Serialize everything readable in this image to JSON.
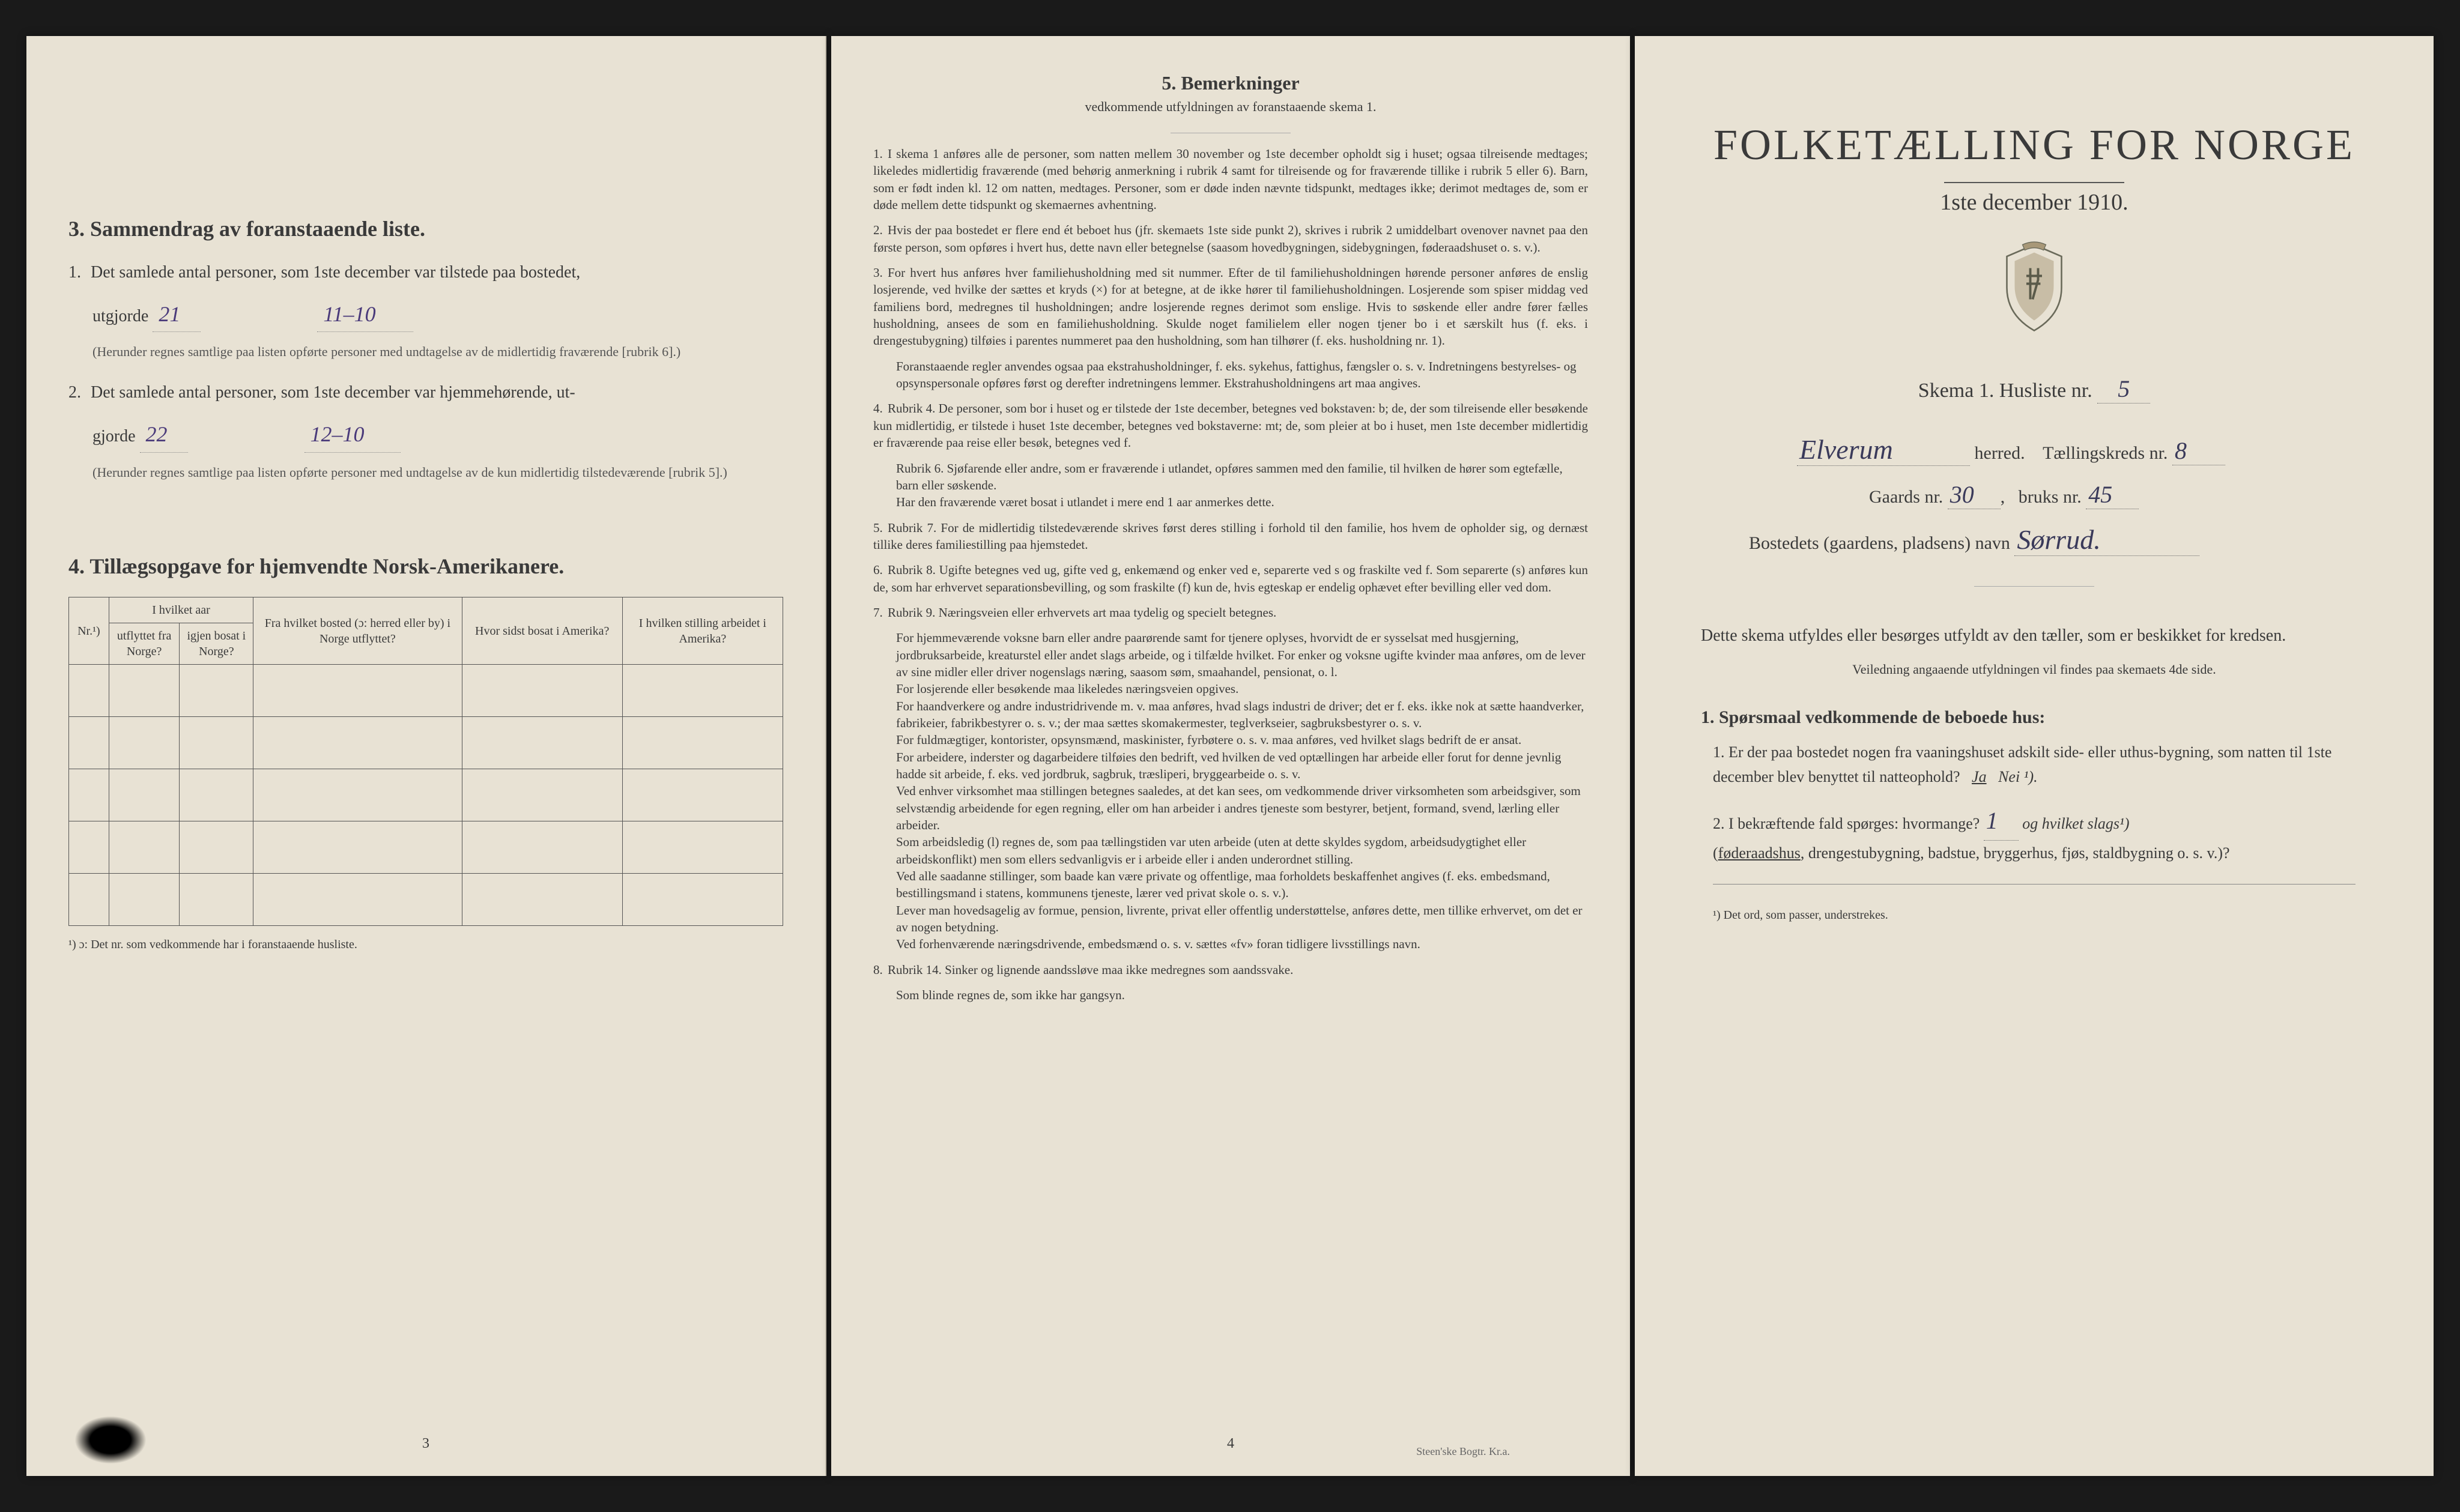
{
  "document": {
    "background_color": "#e8e2d4",
    "text_color": "#3a3a3a",
    "handwriting_color": "#4a3a7a"
  },
  "left_page": {
    "section3": {
      "heading": "3.  Sammendrag av foranstaaende liste.",
      "item1_prefix": "1.",
      "item1_text_a": "Det samlede antal personer, som 1ste december var tilstede paa bostedet,",
      "item1_text_b": "utgjorde",
      "item1_value1": "21",
      "item1_value2": "11–10",
      "item1_note": "(Herunder regnes samtlige paa listen opførte personer med undtagelse av de midlertidig fraværende [rubrik 6].)",
      "item2_prefix": "2.",
      "item2_text_a": "Det samlede antal personer, som 1ste december var hjemmehørende, ut-",
      "item2_text_b": "gjorde",
      "item2_value1": "22",
      "item2_value2": "12–10",
      "item2_note": "(Herunder regnes samtlige paa listen opførte personer med undtagelse av de kun midlertidig tilstedeværende [rubrik 5].)"
    },
    "section4": {
      "heading": "4.  Tillægsopgave for hjemvendte Norsk-Amerikanere.",
      "table": {
        "columns": [
          "Nr.¹)",
          "I hvilket aar",
          "Fra hvilket bosted (ɔ: herred eller by) i Norge utflyttet?",
          "Hvor sidst bosat i Amerika?",
          "I hvilken stilling arbeidet i Amerika?"
        ],
        "subcolumns_year": [
          "utflyttet fra Norge?",
          "igjen bosat i Norge?"
        ],
        "empty_rows": 5
      },
      "footnote": "¹) ɔ: Det nr. som vedkommende har i foranstaaende husliste."
    },
    "page_number": "3"
  },
  "middle_page": {
    "heading": "5.  Bemerkninger",
    "subheading": "vedkommende utfyldningen av foranstaaende skema 1.",
    "remarks": [
      {
        "num": "1.",
        "text": "I skema 1 anføres alle de personer, som natten mellem 30 november og 1ste december opholdt sig i huset; ogsaa tilreisende medtages; likeledes midlertidig fraværende (med behørig anmerkning i rubrik 4 samt for tilreisende og for fraværende tillike i rubrik 5 eller 6). Barn, som er født inden kl. 12 om natten, medtages. Personer, som er døde inden nævnte tidspunkt, medtages ikke; derimot medtages de, som er døde mellem dette tidspunkt og skemaernes avhentning."
      },
      {
        "num": "2.",
        "text": "Hvis der paa bostedet er flere end ét beboet hus (jfr. skemaets 1ste side punkt 2), skrives i rubrik 2 umiddelbart ovenover navnet paa den første person, som opføres i hvert hus, dette navn eller betegnelse (saasom hovedbygningen, sidebygningen, føderaadshuset o. s. v.)."
      },
      {
        "num": "3.",
        "text": "For hvert hus anføres hver familiehusholdning med sit nummer. Efter de til familiehusholdningen hørende personer anføres de enslig losjerende, ved hvilke der sættes et kryds (×) for at betegne, at de ikke hører til familiehusholdningen. Losjerende som spiser middag ved familiens bord, medregnes til husholdningen; andre losjerende regnes derimot som enslige. Hvis to søskende eller andre fører fælles husholdning, ansees de som en familiehusholdning. Skulde noget familielem eller nogen tjener bo i et særskilt hus (f. eks. i drengestubygning) tilføies i parentes nummeret paa den husholdning, som han tilhører (f. eks. husholdning nr. 1)."
      },
      {
        "num": "",
        "text": "Foranstaaende regler anvendes ogsaa paa ekstrahusholdninger, f. eks. sykehus, fattighus, fængsler o. s. v. Indretningens bestyrelses- og opsynspersonale opføres først og derefter indretningens lemmer. Ekstrahusholdningens art maa angives."
      },
      {
        "num": "4.",
        "text": "Rubrik 4. De personer, som bor i huset og er tilstede der 1ste december, betegnes ved bokstaven: b; de, der som tilreisende eller besøkende kun midlertidig, er tilstede i huset 1ste december, betegnes ved bokstaverne: mt; de, som pleier at bo i huset, men 1ste december midlertidig er fraværende paa reise eller besøk, betegnes ved f."
      },
      {
        "num": "",
        "text": "Rubrik 6. Sjøfarende eller andre, som er fraværende i utlandet, opføres sammen med den familie, til hvilken de hører som egtefælle, barn eller søskende."
      },
      {
        "num": "",
        "text": "Har den fraværende været bosat i utlandet i mere end 1 aar anmerkes dette."
      },
      {
        "num": "5.",
        "text": "Rubrik 7. For de midlertidig tilstedeværende skrives først deres stilling i forhold til den familie, hos hvem de opholder sig, og dernæst tillike deres familiestilling paa hjemstedet."
      },
      {
        "num": "6.",
        "text": "Rubrik 8. Ugifte betegnes ved ug, gifte ved g, enkemænd og enker ved e, separerte ved s og fraskilte ved f. Som separerte (s) anføres kun de, som har erhvervet separationsbevilling, og som fraskilte (f) kun de, hvis egteskap er endelig ophævet efter bevilling eller ved dom."
      },
      {
        "num": "7.",
        "text": "Rubrik 9. Næringsveien eller erhvervets art maa tydelig og specielt betegnes."
      },
      {
        "num": "",
        "text": "For hjemmeværende voksne barn eller andre paarørende samt for tjenere oplyses, hvorvidt de er sysselsat med husgjerning, jordbruksarbeide, kreaturstel eller andet slags arbeide, og i tilfælde hvilket. For enker og voksne ugifte kvinder maa anføres, om de lever av sine midler eller driver nogenslags næring, saasom søm, smaahandel, pensionat, o. l."
      },
      {
        "num": "",
        "text": "For losjerende eller besøkende maa likeledes næringsveien opgives."
      },
      {
        "num": "",
        "text": "For haandverkere og andre industridrivende m. v. maa anføres, hvad slags industri de driver; det er f. eks. ikke nok at sætte haandverker, fabrikeier, fabrikbestyrer o. s. v.; der maa sættes skomakermester, teglverkseier, sagbruksbestyrer o. s. v."
      },
      {
        "num": "",
        "text": "For fuldmægtiger, kontorister, opsynsmænd, maskinister, fyrbøtere o. s. v. maa anføres, ved hvilket slags bedrift de er ansat."
      },
      {
        "num": "",
        "text": "For arbeidere, inderster og dagarbeidere tilføies den bedrift, ved hvilken de ved optællingen har arbeide eller forut for denne jevnlig hadde sit arbeide, f. eks. ved jordbruk, sagbruk, træsliperi, bryggearbeide o. s. v."
      },
      {
        "num": "",
        "text": "Ved enhver virksomhet maa stillingen betegnes saaledes, at det kan sees, om vedkommende driver virksomheten som arbeidsgiver, som selvstændig arbeidende for egen regning, eller om han arbeider i andres tjeneste som bestyrer, betjent, formand, svend, lærling eller arbeider."
      },
      {
        "num": "",
        "text": "Som arbeidsledig (l) regnes de, som paa tællingstiden var uten arbeide (uten at dette skyldes sygdom, arbeidsudygtighet eller arbeidskonflikt) men som ellers sedvanligvis er i arbeide eller i anden underordnet stilling."
      },
      {
        "num": "",
        "text": "Ved alle saadanne stillinger, som baade kan være private og offentlige, maa forholdets beskaffenhet angives (f. eks. embedsmand, bestillingsmand i statens, kommunens tjeneste, lærer ved privat skole o. s. v.)."
      },
      {
        "num": "",
        "text": "Lever man hovedsagelig av formue, pension, livrente, privat eller offentlig understøttelse, anføres dette, men tillike erhvervet, om det er av nogen betydning."
      },
      {
        "num": "",
        "text": "Ved forhenværende næringsdrivende, embedsmænd o. s. v. sættes «fv» foran tidligere livsstillings navn."
      },
      {
        "num": "8.",
        "text": "Rubrik 14. Sinker og lignende aandssløve maa ikke medregnes som aandssvake."
      },
      {
        "num": "",
        "text": "Som blinde regnes de, som ikke har gangsyn."
      }
    ],
    "page_number": "4",
    "printer": "Steen'ske Bogtr. Kr.a."
  },
  "right_page": {
    "main_title": "FOLKETÆLLING FOR NORGE",
    "sub_title": "1ste december 1910.",
    "skema_label": "Skema 1.  Husliste nr.",
    "skema_value": "5",
    "herred_value": "Elverum",
    "herred_label": "herred.",
    "kreds_label": "Tællingskreds nr.",
    "kreds_value": "8",
    "gaards_label": "Gaards nr.",
    "gaards_value": "30",
    "bruks_label": "bruks nr.",
    "bruks_value": "45",
    "bosted_label": "Bostedets (gaardens, pladsens) navn",
    "bosted_value": "Sørrud.",
    "instruction1": "Dette skema utfyldes eller besørges utfyldt av den tæller, som er beskikket for kredsen.",
    "instruction2": "Veiledning angaaende utfyldningen vil findes paa skemaets 4de side.",
    "q_heading": "1. Spørsmaal vedkommende de beboede hus:",
    "q1_num": "1.",
    "q1_text": "Er der paa bostedet nogen fra vaaningshuset adskilt side- eller uthus-bygning, som natten til 1ste december blev benyttet til natteophold?",
    "q1_ja": "Ja",
    "q1_nei": "Nei ¹).",
    "q2_num": "2.",
    "q2_text_a": "I bekræftende fald spørges: hvormange?",
    "q2_value": "1",
    "q2_text_b": "og hvilket slags¹)",
    "q2_text_c": "(føderaadshus, drengestubygning, badstue, bryggerhus, fjøs, staldbygning o. s. v.)?",
    "footnote": "¹) Det ord, som passer, understrekes."
  }
}
